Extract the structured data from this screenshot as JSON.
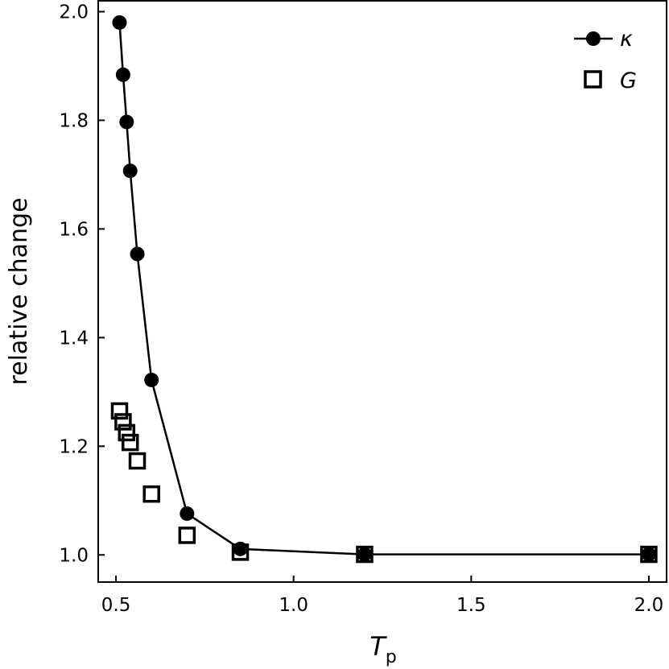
{
  "chart_data": {
    "type": "scatter",
    "title": "",
    "xlabel": {
      "main": "T",
      "sub": "p"
    },
    "ylabel": "relative change",
    "xlim": [
      0.45,
      2.05
    ],
    "ylim": [
      0.95,
      2.02
    ],
    "x_ticks": [
      0.5,
      1.0,
      1.5,
      2.0
    ],
    "x_tick_labels": [
      "0.5",
      "1.0",
      "1.5",
      "2.0"
    ],
    "y_ticks": [
      1.0,
      1.2,
      1.4,
      1.6,
      1.8,
      2.0
    ],
    "y_tick_labels": [
      "1.0",
      "1.2",
      "1.4",
      "1.6",
      "1.8",
      "2.0"
    ],
    "grid": false,
    "legend_position": "top-right",
    "series": [
      {
        "name": "κ",
        "marker": "filled-circle",
        "line": true,
        "x": [
          0.51,
          0.52,
          0.53,
          0.54,
          0.56,
          0.6,
          0.7,
          0.85,
          1.2,
          2.0
        ],
        "y": [
          1.98,
          1.884,
          1.797,
          1.707,
          1.554,
          1.322,
          1.076,
          1.011,
          1.001,
          1.001
        ]
      },
      {
        "name": "G",
        "marker": "open-square",
        "line": false,
        "x": [
          0.51,
          0.52,
          0.53,
          0.54,
          0.56,
          0.6,
          0.7,
          0.85,
          1.2,
          2.0
        ],
        "y": [
          1.265,
          1.245,
          1.225,
          1.207,
          1.173,
          1.112,
          1.036,
          1.005,
          1.001,
          1.001
        ]
      }
    ]
  }
}
